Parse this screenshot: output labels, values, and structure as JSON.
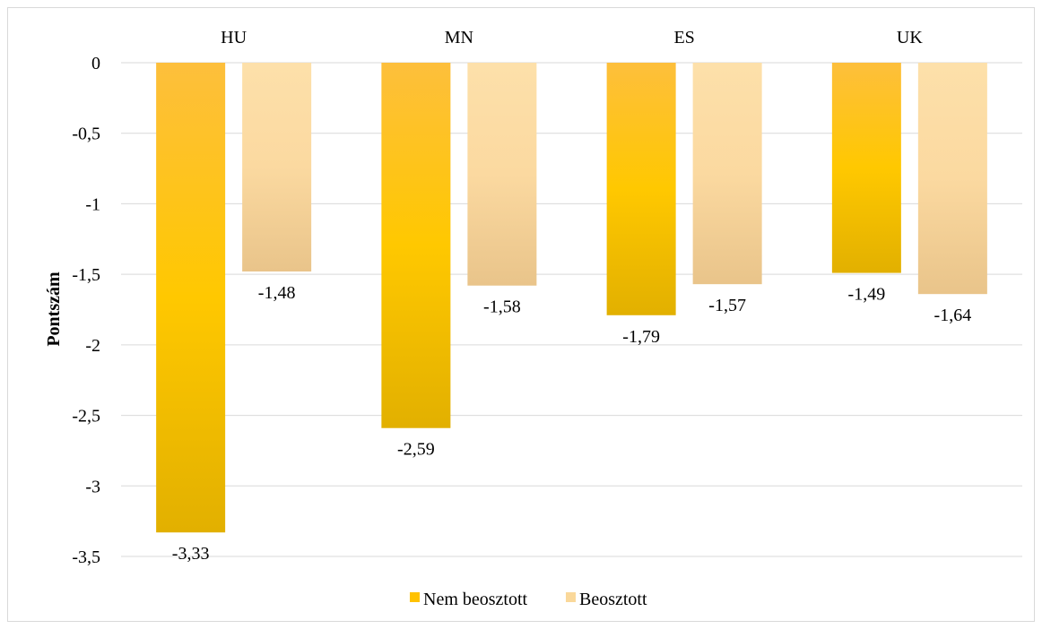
{
  "chart_data": {
    "type": "bar",
    "categories": [
      "HU",
      "MN",
      "ES",
      "UK"
    ],
    "series": [
      {
        "name": "Nem beosztott",
        "values": [
          -3.33,
          -2.59,
          -1.79,
          -1.49
        ],
        "labels": [
          "-3,33",
          "-2,59",
          "-1,79",
          "-1,49"
        ],
        "color": "#ffc200"
      },
      {
        "name": "Beosztott",
        "values": [
          -1.48,
          -1.58,
          -1.57,
          -1.64
        ],
        "labels": [
          "-1,48",
          "-1,58",
          "-1,57",
          "-1,64"
        ],
        "color": "#fad89a"
      }
    ],
    "title": "",
    "xlabel": "",
    "ylabel": "Pontszám",
    "ylim": [
      -3.5,
      0
    ],
    "yticks": [
      0,
      -0.5,
      -1,
      -1.5,
      -2,
      -2.5,
      -3,
      -3.5
    ],
    "ytick_labels": [
      "0",
      "-0,5",
      "-1",
      "-1,5",
      "-2",
      "-2,5",
      "-3",
      "-3,5"
    ],
    "category_axis_position": "top",
    "grid": true,
    "legend_position": "bottom"
  }
}
